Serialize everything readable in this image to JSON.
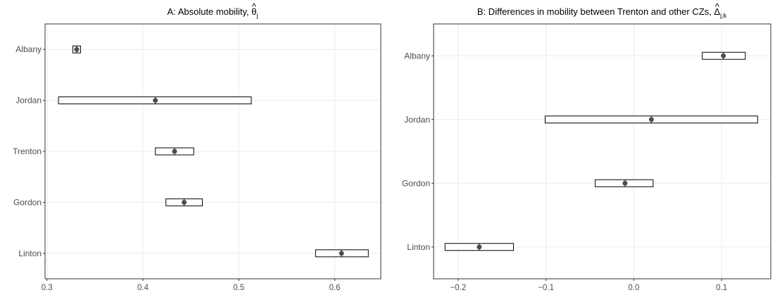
{
  "chart_data": [
    {
      "type": "scatter",
      "title": "A: Absolute mobility, ",
      "title_math": "θ",
      "title_math_sub": "j",
      "categories": [
        "Albany",
        "Jordan",
        "Trenton",
        "Gordon",
        "Linton"
      ],
      "points": [
        {
          "name": "Albany",
          "estimate": 0.331,
          "lower": 0.327,
          "upper": 0.335
        },
        {
          "name": "Jordan",
          "estimate": 0.413,
          "lower": 0.312,
          "upper": 0.513
        },
        {
          "name": "Trenton",
          "estimate": 0.433,
          "lower": 0.413,
          "upper": 0.453
        },
        {
          "name": "Gordon",
          "estimate": 0.443,
          "lower": 0.424,
          "upper": 0.462
        },
        {
          "name": "Linton",
          "estimate": 0.607,
          "lower": 0.58,
          "upper": 0.635
        }
      ],
      "xlim": [
        0.298,
        0.648
      ],
      "xticks": [
        0.3,
        0.4,
        0.5,
        0.6
      ],
      "xtick_labels": [
        "0.3",
        "0.4",
        "0.5",
        "0.6"
      ],
      "grid": true
    },
    {
      "type": "scatter",
      "title": "B: Differences in mobility between Trenton and other CZs, ",
      "title_math": "Δ",
      "title_math_sub": "j,k",
      "categories": [
        "Albany",
        "Jordan",
        "Gordon",
        "Linton"
      ],
      "points": [
        {
          "name": "Albany",
          "estimate": 0.102,
          "lower": 0.078,
          "upper": 0.127
        },
        {
          "name": "Jordan",
          "estimate": 0.02,
          "lower": -0.101,
          "upper": 0.141
        },
        {
          "name": "Gordon",
          "estimate": -0.01,
          "lower": -0.044,
          "upper": 0.022
        },
        {
          "name": "Linton",
          "estimate": -0.176,
          "lower": -0.215,
          "upper": -0.137
        }
      ],
      "xlim": [
        -0.228,
        0.156
      ],
      "xticks": [
        -0.2,
        -0.1,
        0.0,
        0.1
      ],
      "xtick_labels": [
        "−0.2",
        "−0.1",
        "0.0",
        "0.1"
      ],
      "grid": true
    }
  ]
}
